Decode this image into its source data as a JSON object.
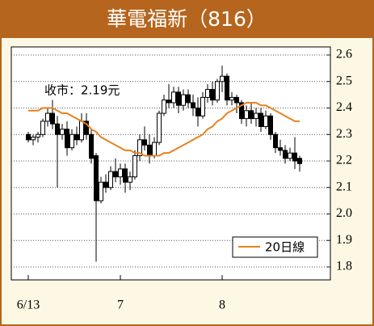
{
  "chart_data": {
    "type": "candlestick",
    "title": "華電福新（816）",
    "annotation": "收市：2.19元",
    "categories": [
      "6/13",
      null,
      null,
      null,
      null,
      null,
      null,
      null,
      null,
      null,
      null,
      null,
      null,
      null,
      null,
      null,
      null,
      null,
      null,
      "7",
      null,
      null,
      null,
      null,
      null,
      null,
      null,
      null,
      null,
      null,
      null,
      null,
      null,
      null,
      null,
      null,
      null,
      null,
      null,
      null,
      "8",
      null,
      null,
      null,
      null,
      null,
      null,
      null,
      null,
      null,
      null,
      null,
      null,
      null,
      null,
      null,
      null
    ],
    "open": [
      2.3,
      2.28,
      2.29,
      2.3,
      2.35,
      2.38,
      2.34,
      2.3,
      2.32,
      2.25,
      2.3,
      2.28,
      2.35,
      2.3,
      2.22,
      2.05,
      2.12,
      2.1,
      2.16,
      2.14,
      2.17,
      2.12,
      2.14,
      2.22,
      2.28,
      2.26,
      2.22,
      2.27,
      2.38,
      2.43,
      2.42,
      2.46,
      2.41,
      2.45,
      2.42,
      2.4,
      2.37,
      2.44,
      2.47,
      2.43,
      2.5,
      2.52,
      2.43,
      2.44,
      2.42,
      2.36,
      2.39,
      2.36,
      2.38,
      2.33,
      2.37,
      2.3,
      2.25,
      2.24,
      2.21,
      2.23,
      2.21
    ],
    "high": [
      2.31,
      2.3,
      2.31,
      2.36,
      2.4,
      2.43,
      2.37,
      2.34,
      2.35,
      2.32,
      2.33,
      2.38,
      2.38,
      2.32,
      2.23,
      2.14,
      2.15,
      2.18,
      2.21,
      2.19,
      2.19,
      2.16,
      2.24,
      2.3,
      2.33,
      2.3,
      2.29,
      2.39,
      2.45,
      2.49,
      2.48,
      2.48,
      2.47,
      2.47,
      2.45,
      2.44,
      2.46,
      2.49,
      2.5,
      2.51,
      2.56,
      2.53,
      2.46,
      2.45,
      2.43,
      2.41,
      2.42,
      2.4,
      2.4,
      2.39,
      2.38,
      2.31,
      2.28,
      2.26,
      2.25,
      2.29,
      2.22
    ],
    "low": [
      2.27,
      2.26,
      2.27,
      2.29,
      2.33,
      2.32,
      2.1,
      2.28,
      2.22,
      2.24,
      2.26,
      2.27,
      2.28,
      2.19,
      1.82,
      2.04,
      2.08,
      2.09,
      2.12,
      2.11,
      2.08,
      2.09,
      2.13,
      2.2,
      2.24,
      2.19,
      2.21,
      2.26,
      2.37,
      2.4,
      2.4,
      2.38,
      2.39,
      2.4,
      2.37,
      2.33,
      2.36,
      2.42,
      2.41,
      2.42,
      2.46,
      2.41,
      2.41,
      2.38,
      2.34,
      2.33,
      2.34,
      2.33,
      2.31,
      2.32,
      2.28,
      2.23,
      2.22,
      2.19,
      2.2,
      2.17,
      2.16
    ],
    "close": [
      2.28,
      2.29,
      2.3,
      2.35,
      2.38,
      2.34,
      2.3,
      2.32,
      2.25,
      2.3,
      2.28,
      2.35,
      2.3,
      2.21,
      2.05,
      2.12,
      2.1,
      2.16,
      2.14,
      2.17,
      2.12,
      2.14,
      2.22,
      2.28,
      2.26,
      2.22,
      2.27,
      2.38,
      2.43,
      2.42,
      2.46,
      2.41,
      2.45,
      2.42,
      2.4,
      2.37,
      2.44,
      2.47,
      2.43,
      2.5,
      2.52,
      2.43,
      2.44,
      2.42,
      2.36,
      2.39,
      2.36,
      2.38,
      2.33,
      2.37,
      2.3,
      2.25,
      2.24,
      2.21,
      2.23,
      2.2,
      2.19
    ],
    "series": [
      {
        "name": "20日線",
        "color": "#e8821e",
        "values": [
          2.39,
          2.39,
          2.39,
          2.4,
          2.4,
          2.4,
          2.39,
          2.38,
          2.38,
          2.37,
          2.36,
          2.35,
          2.34,
          2.32,
          2.31,
          2.29,
          2.28,
          2.27,
          2.26,
          2.25,
          2.24,
          2.24,
          2.23,
          2.23,
          2.22,
          2.22,
          2.22,
          2.22,
          2.23,
          2.23,
          2.24,
          2.25,
          2.26,
          2.27,
          2.28,
          2.29,
          2.3,
          2.32,
          2.33,
          2.35,
          2.36,
          2.38,
          2.39,
          2.4,
          2.41,
          2.42,
          2.42,
          2.42,
          2.41,
          2.41,
          2.4,
          2.39,
          2.38,
          2.37,
          2.36,
          2.35,
          2.35
        ]
      }
    ],
    "ylim": [
      1.8,
      2.6
    ],
    "yticks": [
      1.8,
      1.9,
      {
        "value": 2,
        "label": "2.0"
      },
      2.1,
      2.2,
      2.3,
      2.4,
      2.5,
      2.6
    ],
    "grid": true,
    "legend": "lower-right"
  }
}
